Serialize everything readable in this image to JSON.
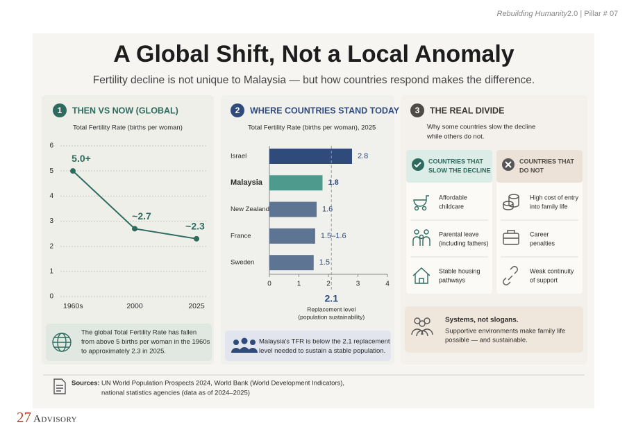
{
  "header": {
    "series": "Rebuilding Humanity",
    "tag": "2.0 | Pillar # 07"
  },
  "title": "A Global Shift, Not a Local Anomaly",
  "subtitle": "Fertility decline is not unique to Malaysia — but how countries respond makes the difference.",
  "panels": [
    {
      "number": "1",
      "title": "THEN VS NOW (GLOBAL)",
      "note": [
        "The global Total Fertility Rate has fallen",
        "from above 5 births per woman in the 1960s",
        "to approximately 2.3 in 2025."
      ]
    },
    {
      "number": "2",
      "title": "WHERE COUNTRIES STAND TODAY",
      "note": [
        "Malaysia's TFR is below the 2.1 replacement",
        "level needed to sustain a stable population."
      ]
    },
    {
      "number": "3",
      "title": "THE REAL DIVIDE",
      "subtitle": [
        "Why some countries slow the decline",
        "while others do not."
      ],
      "columns": [
        {
          "heading": [
            "COUNTRIES THAT",
            "SLOW THE DECLINE"
          ],
          "items": [
            [
              "Affordable",
              "childcare"
            ],
            [
              "Parental leave",
              "(including fathers)"
            ],
            [
              "Stable housing",
              "pathways"
            ]
          ]
        },
        {
          "heading": [
            "COUNTRIES THAT",
            "DO NOT"
          ],
          "items": [
            [
              "High cost of entry",
              "into family life"
            ],
            [
              "Career",
              "penalties"
            ],
            [
              "Weak continuity",
              "of support"
            ]
          ]
        }
      ],
      "callout": {
        "title": "Systems, not slogans.",
        "text": [
          "Supportive environments make family life",
          "possible — and sustainable."
        ]
      }
    }
  ],
  "chart_data": [
    {
      "type": "line",
      "subtitle": "Total Fertility Rate (births per woman)",
      "categories": [
        "1960s",
        "2000",
        "2025"
      ],
      "values": [
        5.0,
        2.7,
        2.3
      ],
      "value_labels": [
        "5.0+",
        "~2.7",
        "~2.3"
      ],
      "color": "#2e6b5e",
      "ylim": [
        0,
        6
      ],
      "yticks": [
        0,
        1,
        2,
        3,
        4,
        5,
        6
      ],
      "grid": true
    },
    {
      "type": "bar",
      "orientation": "horizontal",
      "subtitle": "Total Fertility Rate (births per woman), 2025",
      "categories": [
        "Israel",
        "Malaysia",
        "New Zealand",
        "France",
        "Sweden"
      ],
      "values": [
        2.8,
        1.8,
        1.6,
        1.55,
        1.5
      ],
      "value_labels": [
        "2.8",
        "1.8",
        "1.6",
        "1.5–1.6",
        "1.5"
      ],
      "colors": [
        "#2f4b7c",
        "#4e9a8c",
        "#5d7593",
        "#5d7593",
        "#5d7593"
      ],
      "highlight": 1,
      "xlim": [
        0,
        4
      ],
      "xticks": [
        0,
        1,
        2,
        3,
        4
      ],
      "reference": {
        "value": 2.1,
        "label": "Replacement level",
        "note": "(population sustainability)"
      }
    }
  ],
  "sources": {
    "label": "Sources:",
    "text": [
      "UN World Population Prospects 2024, World Bank (World Development Indicators),",
      "national statistics agencies (data as of 2024–2025)"
    ]
  },
  "logo": {
    "number": "27",
    "name": "Advisory"
  }
}
